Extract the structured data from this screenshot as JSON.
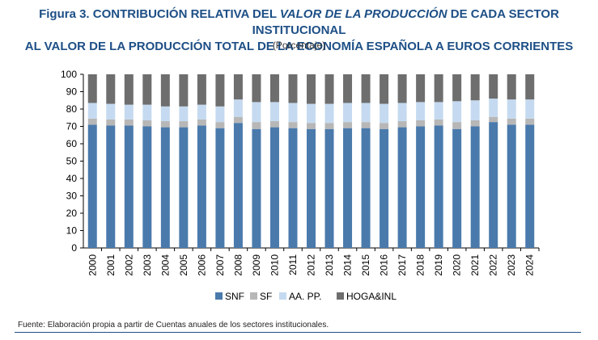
{
  "figure": {
    "label": "Figura 3.",
    "title_part1": "CONTRIBUCIÓN RELATIVA DEL",
    "title_italic": "VALOR DE LA PRODUCCIÓN",
    "title_part2": "DE CADA SECTOR INSTITUCIONAL",
    "title_line2": "AL VALOR DE LA PRODUCCIÓN TOTAL DE LA ECONOMÍA ESPAÑOLA A EUROS CORRIENTES",
    "subtitle": "(Porcentaje)",
    "source": "Fuente: Elaboración propia a partir de Cuentas anuales de los sectores institucionales."
  },
  "colors": {
    "title": "#1d4f86",
    "SNF": "#4a7aac",
    "SF": "#b7b7b7",
    "AAPP": "#c5daf0",
    "HOGA": "#6e6e6e"
  },
  "chart_data": {
    "type": "bar",
    "stacked": true,
    "title": "CONTRIBUCIÓN RELATIVA DEL VALOR DE LA PRODUCCIÓN DE CADA SECTOR INSTITUCIONAL AL VALOR DE LA PRODUCCIÓN TOTAL DE LA ECONOMÍA ESPAÑOLA A EUROS CORRIENTES",
    "subtitle": "(Porcentaje)",
    "xlabel": "",
    "ylabel": "",
    "ylim": [
      0,
      100
    ],
    "yticks": [
      0,
      10,
      20,
      30,
      40,
      50,
      60,
      70,
      80,
      90,
      100
    ],
    "grid": false,
    "legend_position": "bottom",
    "categories": [
      "2000",
      "2001",
      "2002",
      "2003",
      "2004",
      "2005",
      "2006",
      "2007",
      "2008",
      "2009",
      "2010",
      "2011",
      "2012",
      "2013",
      "2014",
      "2015",
      "2016",
      "2017",
      "2018",
      "2019",
      "2020",
      "2021",
      "2022",
      "2023",
      "2024"
    ],
    "series": [
      {
        "name": "SNF",
        "key": "SNF",
        "values": [
          71,
          70.5,
          70.5,
          70,
          69.5,
          69.5,
          70.5,
          69,
          72,
          68.5,
          69.5,
          69,
          68.5,
          68.5,
          69,
          69,
          68.5,
          69.5,
          70,
          70.5,
          68.5,
          70,
          72.5,
          71,
          71
        ]
      },
      {
        "name": "SF",
        "key": "SF",
        "values": [
          3.5,
          3.5,
          3.5,
          3.5,
          3.5,
          3.5,
          3.5,
          3.5,
          3.5,
          4,
          3.5,
          3.5,
          3.5,
          3.5,
          3.5,
          3.5,
          3.5,
          3.5,
          3.5,
          3.5,
          4,
          3.5,
          3,
          3.5,
          3.5
        ]
      },
      {
        "name": "AA. PP.",
        "key": "AAPP",
        "values": [
          9,
          9,
          8.5,
          9,
          8.5,
          8.5,
          8.5,
          9,
          10,
          11.5,
          11,
          11,
          11,
          11,
          11,
          11,
          11,
          10.5,
          10.5,
          10,
          12,
          11.5,
          10.5,
          11,
          11
        ]
      },
      {
        "name": "HOGA&INL",
        "key": "HOGA",
        "values": [
          16.5,
          17,
          17.5,
          17.5,
          18.5,
          18.5,
          17.5,
          18.5,
          14.5,
          16,
          16,
          16.5,
          17,
          17,
          16.5,
          16.5,
          17,
          16.5,
          16,
          16,
          15.5,
          15,
          14,
          14.5,
          14.5
        ]
      }
    ]
  }
}
